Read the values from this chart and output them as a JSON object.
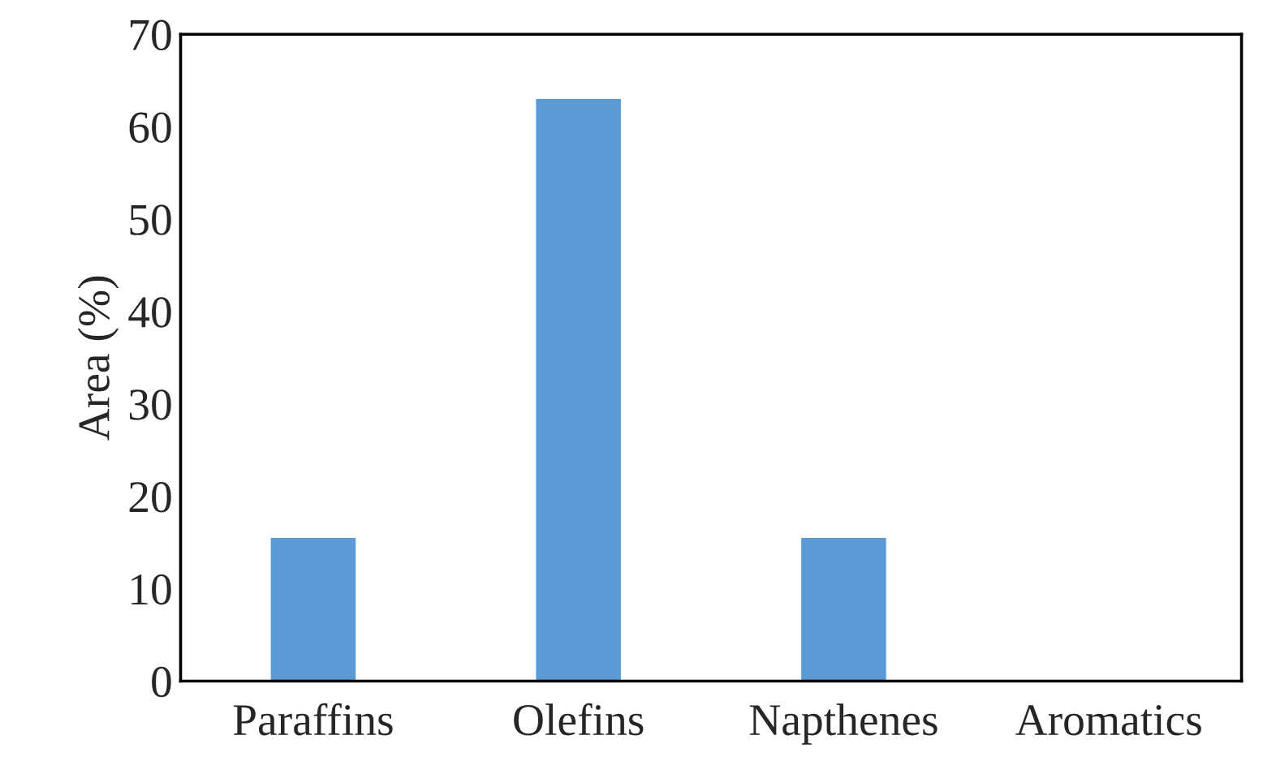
{
  "chart_data": {
    "type": "bar",
    "ylabel": "Area (%)",
    "categories": [
      "Paraffins",
      "Olefins",
      "Napthenes",
      "Aromatics"
    ],
    "values": [
      15.5,
      63,
      15.5,
      0
    ],
    "color": "#5b9bd5",
    "ylim": [
      0,
      70
    ],
    "yticks": [
      0,
      10,
      20,
      30,
      40,
      50,
      60,
      70
    ],
    "grid": false
  }
}
